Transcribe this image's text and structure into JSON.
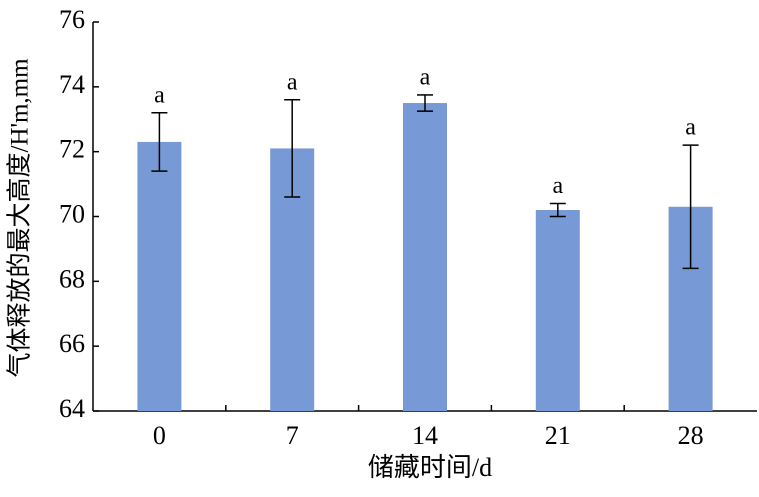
{
  "chart_data": {
    "type": "bar",
    "x_label": "储藏时间/d",
    "y_label": "气体释放的最大高度/H'm,mm",
    "categories": [
      "0",
      "7",
      "14",
      "21",
      "28"
    ],
    "values": [
      72.3,
      72.1,
      73.5,
      70.2,
      70.3
    ],
    "errors": [
      0.9,
      1.5,
      0.25,
      0.2,
      1.9
    ],
    "annotations": [
      "a",
      "a",
      "a",
      "a",
      "a"
    ],
    "color": "#7799d6",
    "ylim": [
      64,
      76
    ],
    "yticks": [
      64,
      66,
      68,
      70,
      72,
      74,
      76
    ]
  }
}
